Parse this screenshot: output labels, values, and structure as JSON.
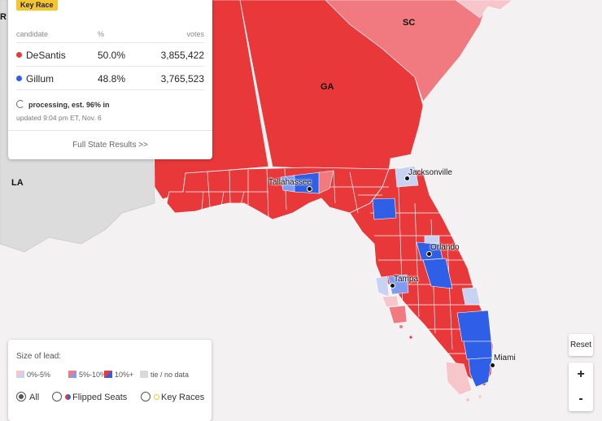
{
  "map": {
    "state_labels": {
      "sc": "SC",
      "ga": "GA",
      "la": "LA",
      "partial_r": "R"
    },
    "cities": {
      "tallahassee": "Tallahassee",
      "jacksonville": "Jacksonville",
      "orlando": "Orlando",
      "tampa": "Tampa",
      "miami": "Miami"
    },
    "colors": {
      "rep_strong": "#e8383a",
      "rep_medium": "#f07a80",
      "rep_light": "#f7c6cb",
      "dem_strong": "#2f5fe6",
      "dem_medium": "#7f9cf0",
      "dem_light": "#c8d2f3",
      "no_data": "#d9d9d9",
      "background": "#f3f1f1"
    }
  },
  "results": {
    "badge": "Key Race",
    "headers": {
      "candidate": "candidate",
      "pct": "%",
      "votes": "votes"
    },
    "candidates": [
      {
        "name": "DeSantis",
        "pct": "50.0%",
        "votes": "3,855,422",
        "color": "#e8383a"
      },
      {
        "name": "Gillum",
        "pct": "48.8%",
        "votes": "3,765,523",
        "color": "#2f5fe6"
      }
    ],
    "status": "processing, est. 96% in",
    "updated": "updated 9:04 pm ET, Nov. 6",
    "full_results": "Full State Results >>"
  },
  "legend": {
    "title": "Size of lead:",
    "ranges": [
      "0%-5%",
      "5%-10%",
      "10%+",
      "tie / no data"
    ],
    "options": {
      "all": "All",
      "flipped": "Flipped Seats",
      "key": "Key Races"
    },
    "selected": "All"
  },
  "controls": {
    "reset": "Reset",
    "zoom_in": "+",
    "zoom_out": "-"
  }
}
